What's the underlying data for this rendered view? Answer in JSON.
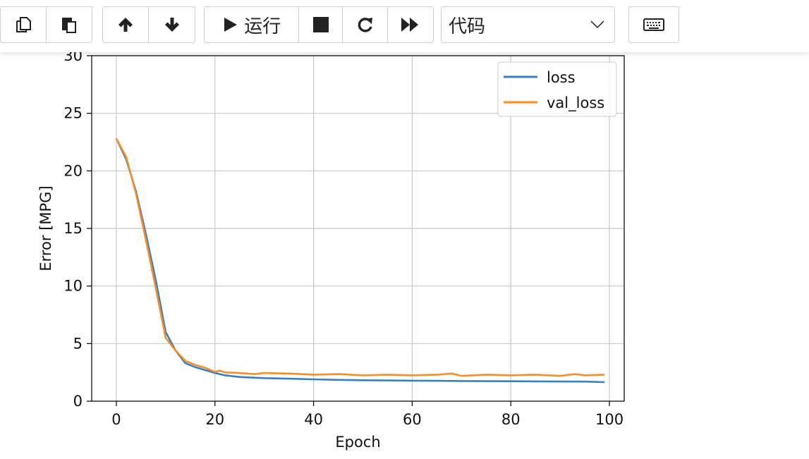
{
  "toolbar": {
    "run_label": "运行",
    "cell_type": "代码"
  },
  "colors": {
    "loss": "#3a7fbd",
    "val_loss": "#f28e2b",
    "grid": "#c8c8c8"
  },
  "chart_data": {
    "type": "line",
    "xlabel": "Epoch",
    "ylabel": "Error [MPG]",
    "xlim": [
      -5,
      103
    ],
    "ylim": [
      0,
      30
    ],
    "xticks": [
      0,
      20,
      40,
      60,
      80,
      100
    ],
    "yticks": [
      0,
      5,
      10,
      15,
      20,
      25,
      30
    ],
    "grid": true,
    "legend_position": "top-right",
    "series": [
      {
        "name": "loss",
        "x": [
          0,
          2,
          4,
          6,
          8,
          10,
          12,
          14,
          16,
          18,
          20,
          22,
          25,
          30,
          35,
          40,
          45,
          50,
          55,
          60,
          65,
          70,
          75,
          80,
          85,
          90,
          95,
          99
        ],
        "y": [
          22.8,
          21.0,
          18.2,
          14.5,
          10.5,
          6.0,
          4.4,
          3.3,
          2.95,
          2.7,
          2.45,
          2.25,
          2.1,
          2.0,
          1.95,
          1.9,
          1.85,
          1.82,
          1.8,
          1.78,
          1.77,
          1.75,
          1.74,
          1.73,
          1.72,
          1.71,
          1.7,
          1.65
        ]
      },
      {
        "name": "val_loss",
        "x": [
          0,
          2,
          4,
          6,
          8,
          10,
          12,
          14,
          16,
          18,
          20,
          21,
          22,
          25,
          28,
          30,
          35,
          40,
          45,
          50,
          55,
          60,
          65,
          68,
          70,
          75,
          80,
          85,
          90,
          93,
          95,
          99
        ],
        "y": [
          22.8,
          21.2,
          18.0,
          14.0,
          9.8,
          5.5,
          4.4,
          3.5,
          3.15,
          2.9,
          2.55,
          2.65,
          2.5,
          2.45,
          2.35,
          2.45,
          2.4,
          2.3,
          2.35,
          2.25,
          2.3,
          2.25,
          2.3,
          2.4,
          2.2,
          2.3,
          2.25,
          2.3,
          2.2,
          2.35,
          2.25,
          2.3
        ]
      }
    ]
  }
}
